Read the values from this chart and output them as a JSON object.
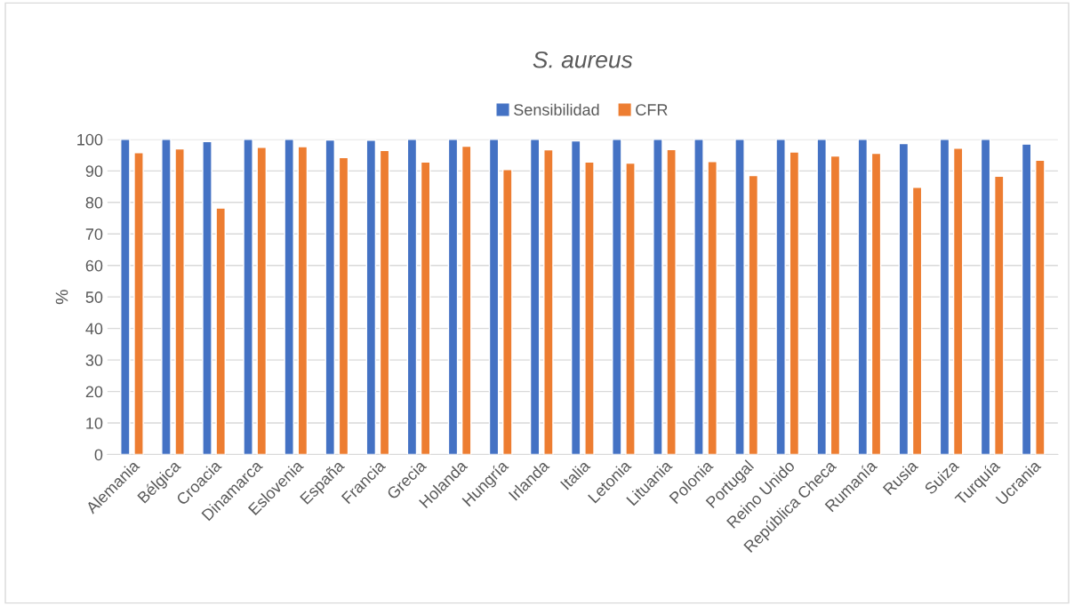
{
  "chart_data": {
    "type": "bar",
    "title": "S. aureus",
    "ylabel": "%",
    "categories": [
      "Alemania",
      "Bélgica",
      "Croacia",
      "Dinamarca",
      "Eslovenia",
      "España",
      "Francia",
      "Grecia",
      "Holanda",
      "Hungría",
      "Irlanda",
      "Italia",
      "Letonia",
      "Lituania",
      "Polonia",
      "Portugal",
      "Reino Unido",
      "República Checa",
      "Rumanía",
      "Rusia",
      "Suiza",
      "Turquía",
      "Ucrania"
    ],
    "series": [
      {
        "name": "Sensibilidad",
        "color": "#4472c4",
        "values": [
          100,
          100,
          99.3,
          100,
          100,
          99.8,
          99.7,
          100,
          100,
          100,
          100,
          99.5,
          100,
          100,
          100,
          100,
          100,
          100,
          100,
          98.7,
          100,
          100,
          98.5
        ]
      },
      {
        "name": "CFR",
        "color": "#ed7d31",
        "values": [
          95.8,
          97,
          78.2,
          97.5,
          97.7,
          94.2,
          96.5,
          92.8,
          97.8,
          90.4,
          96.7,
          92.8,
          92.5,
          96.8,
          93,
          88.5,
          96,
          94.7,
          95.6,
          84.8,
          97.2,
          88.3,
          93.4
        ]
      }
    ],
    "ylim": [
      0,
      100
    ],
    "yticks": [
      0,
      10,
      20,
      30,
      40,
      50,
      60,
      70,
      80,
      90,
      100
    ],
    "grid": "y",
    "legend": "top"
  }
}
